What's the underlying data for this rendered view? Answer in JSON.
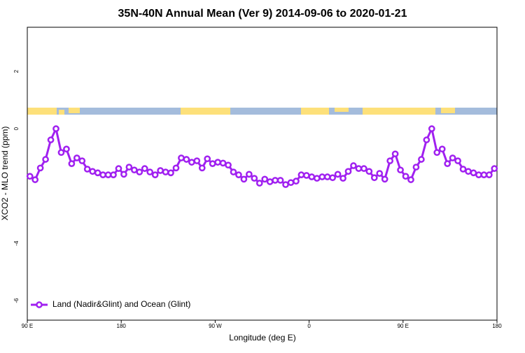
{
  "chart_data": {
    "type": "line",
    "title": "35N-40N Annual Mean (Ver 9)   2014-09-06 to 2020-01-21",
    "x_label": "Longitude (deg E)",
    "y_label": "XCO2 - MLO trend (ppm)",
    "x": [
      92.5,
      97.5,
      102.5,
      107.5,
      112.5,
      117.5,
      122.5,
      127.5,
      132.5,
      137.5,
      142.5,
      147.5,
      152.5,
      157.5,
      162.5,
      167.5,
      172.5,
      177.5,
      182.5,
      187.5,
      192.5,
      197.5,
      202.5,
      207.5,
      212.5,
      217.5,
      222.5,
      227.5,
      232.5,
      237.5,
      242.5,
      247.5,
      252.5,
      257.5,
      262.5,
      267.5,
      272.5,
      277.5,
      282.5,
      287.5,
      292.5,
      297.5,
      302.5,
      307.5,
      312.5,
      317.5,
      322.5,
      327.5,
      332.5,
      337.5,
      342.5,
      347.5,
      352.5,
      357.5,
      362.5,
      367.5,
      372.5,
      377.5,
      382.5,
      387.5,
      392.5,
      397.5,
      402.5,
      407.5,
      412.5,
      417.5,
      422.5,
      427.5,
      432.5,
      437.5,
      442.5,
      447.5,
      452.5,
      457.5,
      462.5,
      467.5,
      472.5,
      477.5,
      482.5,
      487.5,
      492.5,
      497.5,
      502.5,
      507.5,
      512.5,
      517.5,
      522.5,
      527.5,
      532.5,
      537.5
    ],
    "series": [
      {
        "name": "Land (Nadir&Glint) and Ocean (Glint)",
        "color": "#a020f0",
        "values": [
          -1.66,
          -1.78,
          -1.37,
          -1.07,
          -0.39,
          0,
          -0.83,
          -0.71,
          -1.22,
          -1.02,
          -1.12,
          -1.41,
          -1.49,
          -1.54,
          -1.61,
          -1.61,
          -1.61,
          -1.39,
          -1.59,
          -1.34,
          -1.44,
          -1.51,
          -1.39,
          -1.51,
          -1.61,
          -1.46,
          -1.51,
          -1.54,
          -1.37,
          -1.02,
          -1.07,
          -1.17,
          -1.12,
          -1.37,
          -1.05,
          -1.22,
          -1.17,
          -1.2,
          -1.27,
          -1.51,
          -1.61,
          -1.76,
          -1.59,
          -1.73,
          -1.9,
          -1.76,
          -1.85,
          -1.8,
          -1.8,
          -1.95,
          -1.88,
          -1.83,
          -1.61,
          -1.63,
          -1.68,
          -1.73,
          -1.68,
          -1.68,
          -1.71,
          -1.59,
          -1.73,
          -1.49,
          -1.29,
          -1.39,
          -1.39,
          -1.49,
          -1.71,
          -1.56,
          -1.76,
          -1.12,
          -0.88,
          -1.44,
          -1.66,
          -1.78,
          -1.34,
          -1.07,
          -0.39,
          0,
          -0.83,
          -0.71,
          -1.22,
          -1.02,
          -1.12,
          -1.41,
          -1.49,
          -1.54,
          -1.61,
          -1.61,
          -1.61,
          -1.39
        ]
      }
    ],
    "xlim": [
      90,
      540
    ],
    "xticks": [
      {
        "value": 90,
        "label": "90 E"
      },
      180,
      {
        "value": 270,
        "label": "90 W"
      },
      {
        "value": 360,
        "label": "0"
      },
      {
        "value": 450,
        "label": "90 E"
      },
      {
        "value": 540,
        "label": "180"
      }
    ],
    "ylim": [
      -6.68,
      3.54
    ],
    "yticks": [
      2,
      0,
      -4,
      -6
    ],
    "legend": "bottom-left"
  }
}
